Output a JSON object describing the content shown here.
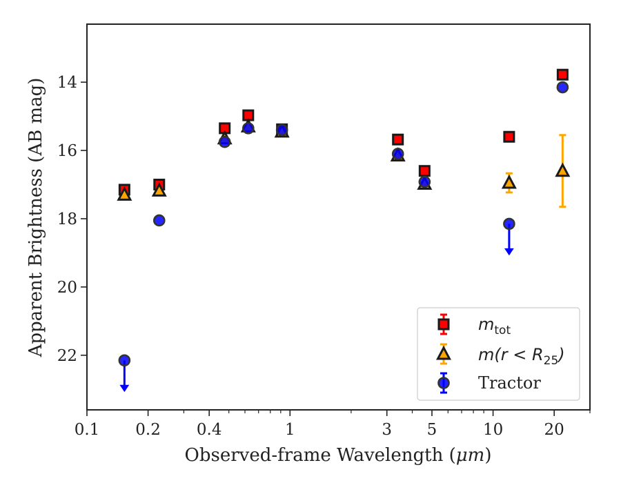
{
  "chart_data": {
    "type": "scatter",
    "xscale": "log",
    "yinverted": true,
    "xlim": [
      0.1,
      30
    ],
    "ylim": [
      23.6,
      12.3
    ],
    "xlabel_prefix": "Observed-frame Wavelength (",
    "xlabel_unit": "μm",
    "xlabel_suffix": ")",
    "ylabel": "Apparent Brightness (AB mag)",
    "xticks": [
      {
        "value": 0.1,
        "label": "0.1"
      },
      {
        "value": 0.2,
        "label": "0.2"
      },
      {
        "value": 0.4,
        "label": "0.4"
      },
      {
        "value": 1,
        "label": "1"
      },
      {
        "value": 3,
        "label": "3"
      },
      {
        "value": 5,
        "label": "5"
      },
      {
        "value": 10,
        "label": "10"
      },
      {
        "value": 20,
        "label": "20"
      }
    ],
    "yticks": [
      {
        "value": 14,
        "label": "14"
      },
      {
        "value": 16,
        "label": "16"
      },
      {
        "value": 18,
        "label": "18"
      },
      {
        "value": 20,
        "label": "20"
      },
      {
        "value": 22,
        "label": "22"
      }
    ],
    "series": [
      {
        "key": "mtot",
        "legend_main": "m",
        "legend_sub": "tot",
        "marker": "square",
        "color": "#ff0000",
        "edge": "#1a1a1a",
        "points": [
          {
            "x": 0.153,
            "y": 17.15,
            "err": 0.05
          },
          {
            "x": 0.227,
            "y": 17.0,
            "err": 0.05
          },
          {
            "x": 0.477,
            "y": 15.35,
            "err": 0.03
          },
          {
            "x": 0.623,
            "y": 14.97,
            "err": 0.03
          },
          {
            "x": 0.913,
            "y": 15.38,
            "err": 0.03
          },
          {
            "x": 3.4,
            "y": 15.68,
            "err": 0.03
          },
          {
            "x": 4.6,
            "y": 16.6,
            "err": 0.03
          },
          {
            "x": 12.0,
            "y": 15.6,
            "err": 0.03
          },
          {
            "x": 22.0,
            "y": 13.78,
            "err": 0.03
          }
        ]
      },
      {
        "key": "mr25",
        "legend_main": "m(r < R",
        "legend_sub": "25",
        "legend_close": ")",
        "marker": "triangle",
        "color": "#ffa500",
        "edge": "#1a1a1a",
        "points": [
          {
            "x": 0.153,
            "y": 17.3,
            "err": 0.05
          },
          {
            "x": 0.227,
            "y": 17.18,
            "err": 0.05
          },
          {
            "x": 0.477,
            "y": 15.65,
            "err": 0.05
          },
          {
            "x": 0.623,
            "y": 15.3,
            "err": 0.05
          },
          {
            "x": 0.913,
            "y": 15.45,
            "err": 0.05
          },
          {
            "x": 3.4,
            "y": 16.15,
            "err": 0.05
          },
          {
            "x": 4.6,
            "y": 16.98,
            "err": 0.05
          },
          {
            "x": 12.0,
            "y": 16.95,
            "err": 0.28
          },
          {
            "x": 22.0,
            "y": 16.6,
            "err": 1.05
          }
        ]
      },
      {
        "key": "tractor",
        "legend_label": "Tractor",
        "marker": "circle",
        "color": "#0000ff",
        "edge": "#333333",
        "points": [
          {
            "x": 0.153,
            "y": 22.15,
            "upper_limit": true
          },
          {
            "x": 0.227,
            "y": 18.05,
            "err": 0.04
          },
          {
            "x": 0.477,
            "y": 15.75,
            "err": 0.04
          },
          {
            "x": 0.623,
            "y": 15.35,
            "err": 0.04
          },
          {
            "x": 0.913,
            "y": 15.4,
            "err": 0.04
          },
          {
            "x": 3.4,
            "y": 16.1,
            "err": 0.04
          },
          {
            "x": 4.6,
            "y": 16.92,
            "err": 0.04
          },
          {
            "x": 12.0,
            "y": 18.15,
            "upper_limit": true
          },
          {
            "x": 22.0,
            "y": 14.15,
            "err": 0.04
          }
        ]
      }
    ],
    "legend_position": "lower-right"
  }
}
